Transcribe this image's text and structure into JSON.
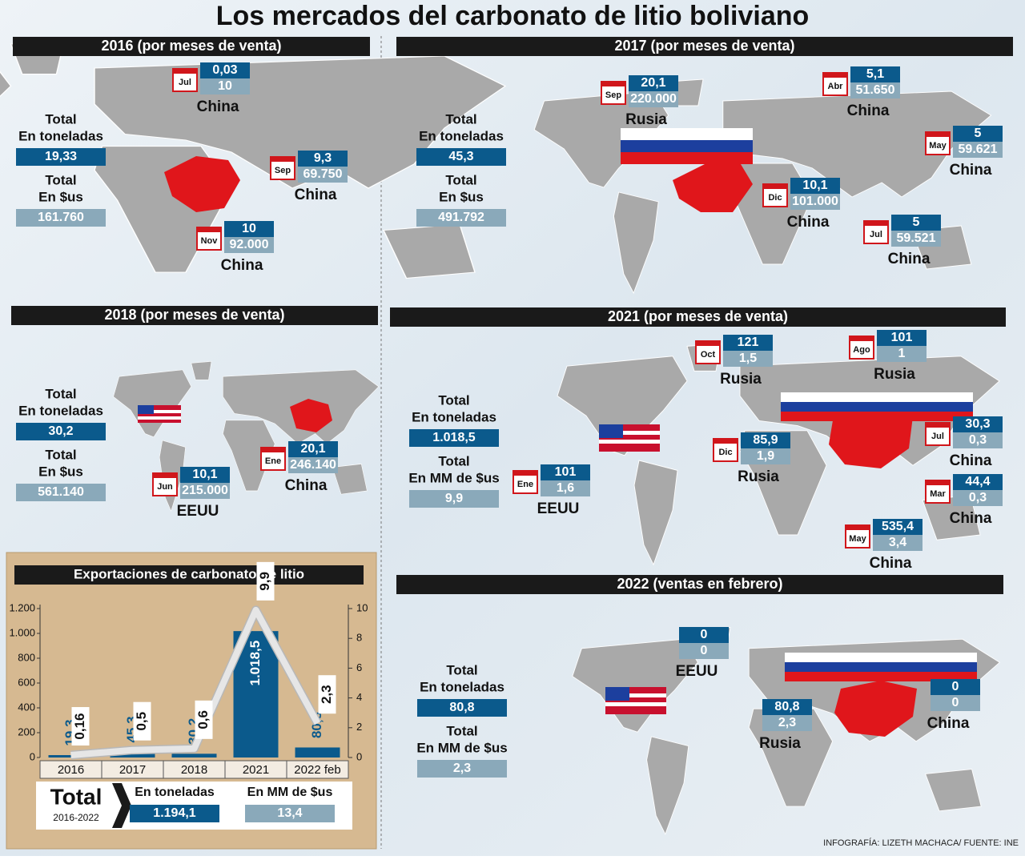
{
  "title": "Los mercados del carbonato de litio boliviano",
  "footer": "INFOGRAFÍA: LIZETH MACHACA/ FUENTE: INE",
  "panels": [
    {
      "heading": "2016 (por meses de venta)",
      "totals": [
        {
          "label": [
            "Total",
            "En toneladas"
          ],
          "value": "19,33"
        },
        {
          "label": [
            "Total",
            "En $us"
          ],
          "value": "161.760"
        }
      ],
      "sales": [
        {
          "month": "Jul",
          "tons": "0,03",
          "usd": "10",
          "country": "China"
        },
        {
          "month": "Sep",
          "tons": "9,3",
          "usd": "69.750",
          "country": "China"
        },
        {
          "month": "Nov",
          "tons": "10",
          "usd": "92.000",
          "country": "China"
        }
      ]
    },
    {
      "heading": "2017 (por meses de venta)",
      "totals": [
        {
          "label": [
            "Total",
            "En toneladas"
          ],
          "value": "45,3"
        },
        {
          "label": [
            "Total",
            "En $us"
          ],
          "value": "491.792"
        }
      ],
      "sales": [
        {
          "month": "Sep",
          "tons": "20,1",
          "usd": "220.000",
          "country": "Rusia"
        },
        {
          "month": "Abr",
          "tons": "5,1",
          "usd": "51.650",
          "country": "China"
        },
        {
          "month": "May",
          "tons": "5",
          "usd": "59.621",
          "country": "China"
        },
        {
          "month": "Dic",
          "tons": "10,1",
          "usd": "101.000",
          "country": "China"
        },
        {
          "month": "Jul",
          "tons": "5",
          "usd": "59.521",
          "country": "China"
        }
      ]
    },
    {
      "heading": "2018 (por meses de venta)",
      "totals": [
        {
          "label": [
            "Total",
            "En toneladas"
          ],
          "value": "30,2"
        },
        {
          "label": [
            "Total",
            "En $us"
          ],
          "value": "561.140"
        }
      ],
      "sales": [
        {
          "month": "Jun",
          "tons": "10,1",
          "usd": "215.000",
          "country": "EEUU"
        },
        {
          "month": "Ene",
          "tons": "20,1",
          "usd": "246.140",
          "country": "China"
        }
      ]
    },
    {
      "heading": "2021 (por meses de venta)",
      "totals": [
        {
          "label": [
            "Total",
            "En toneladas"
          ],
          "value": "1.018,5"
        },
        {
          "label": [
            "Total",
            "En MM de $us"
          ],
          "value": "9,9"
        }
      ],
      "sales": [
        {
          "month": "Oct",
          "tons": "121",
          "usd": "1,5",
          "country": "Rusia"
        },
        {
          "month": "Ago",
          "tons": "101",
          "usd": "1",
          "country": "Rusia"
        },
        {
          "month": "Jul",
          "tons": "30,3",
          "usd": "0,3",
          "country": "China"
        },
        {
          "month": "Dic",
          "tons": "85,9",
          "usd": "1,9",
          "country": "Rusia"
        },
        {
          "month": "Ene",
          "tons": "101",
          "usd": "1,6",
          "country": "EEUU"
        },
        {
          "month": "Mar",
          "tons": "44,4",
          "usd": "0,3",
          "country": "China"
        },
        {
          "month": "May",
          "tons": "535,4",
          "usd": "3,4",
          "country": "China"
        }
      ]
    },
    {
      "heading": "2022 (ventas en febrero)",
      "totals": [
        {
          "label": [
            "Total",
            "En toneladas"
          ],
          "value": "80,8"
        },
        {
          "label": [
            "Total",
            "En MM de $us"
          ],
          "value": "2,3"
        }
      ],
      "sales": [
        {
          "tons": "0",
          "usd": "0",
          "country": "EEUU"
        },
        {
          "tons": "0",
          "usd": "0",
          "country": "China"
        },
        {
          "tons": "80,8",
          "usd": "2,3",
          "country": "Rusia"
        }
      ]
    }
  ],
  "chart_data": {
    "type": "bar",
    "title": "Exportaciones de carbonato de litio",
    "categories": [
      "2016",
      "2017",
      "2018",
      "2021",
      "2022 feb"
    ],
    "series": [
      {
        "type": "bar",
        "color": "#0b5a8c",
        "values": [
          19.3,
          45.3,
          30.2,
          1018.5,
          80.8
        ],
        "value_labels": [
          "19,3",
          "45,3",
          "30,2",
          "1.018,5",
          "80,8"
        ]
      },
      {
        "type": "line",
        "axis": "y2",
        "color": "#e6e6e6",
        "values": [
          0.16,
          0.5,
          0.6,
          9.9,
          2.3
        ],
        "value_labels": [
          "0,16",
          "0,5",
          "0,6",
          "9,9",
          "2,3"
        ]
      }
    ],
    "ylim": [
      0,
      1200
    ],
    "yticks": [
      0,
      200,
      400,
      600,
      800,
      {
        "value": 1000,
        "label": "1.000"
      },
      {
        "value": 1200,
        "label": "1.200"
      }
    ],
    "y2lim": [
      0,
      10
    ],
    "y2ticks": [
      0,
      2,
      4,
      6,
      8,
      10
    ]
  },
  "export_totals": {
    "title": "Total",
    "period": "2016-2022",
    "items": [
      {
        "label": "En toneladas",
        "value": "1.194,1"
      },
      {
        "label": "En MM de $us",
        "value": "13,4"
      }
    ]
  }
}
